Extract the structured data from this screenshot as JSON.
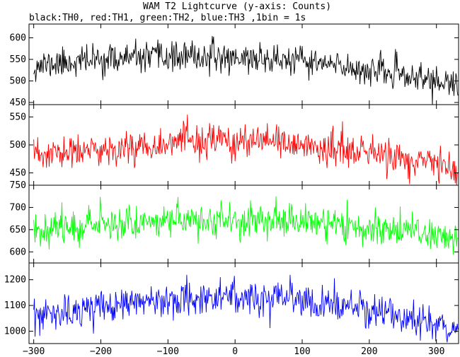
{
  "chart_data": {
    "type": "line",
    "title": "WAM T2 Lightcurve (y-axis: Counts)",
    "subtitle": "black:TH0, red:TH1, green:TH2, blue:TH3 ,1bin = 1s",
    "xlabel": "",
    "xlim": [
      -307,
      333
    ],
    "x_ticks": [
      -300,
      -200,
      -100,
      0,
      100,
      200,
      300
    ],
    "x_tick_labels": [
      "−300",
      "−200",
      "−100",
      "0",
      "100",
      "200",
      "300"
    ],
    "grid": false,
    "panels": [
      {
        "series_name": "TH0",
        "color": "#000000",
        "ylim": [
          445,
          632
        ],
        "y_ticks": [
          450,
          500,
          550,
          600
        ],
        "y_tick_labels": [
          "450",
          "500",
          "550",
          "600"
        ],
        "trend": [
          [
            -300,
            535
          ],
          [
            -200,
            550
          ],
          [
            -100,
            555
          ],
          [
            0,
            555
          ],
          [
            100,
            545
          ],
          [
            200,
            525
          ],
          [
            300,
            500
          ],
          [
            330,
            485
          ]
        ],
        "noise_sd": 17,
        "seed": 11
      },
      {
        "series_name": "TH1",
        "color": "#ff0000",
        "ylim": [
          428,
          572
        ],
        "y_ticks": [
          450,
          500,
          550
        ],
        "y_tick_labels": [
          "450",
          "500",
          "550"
        ],
        "trend": [
          [
            -300,
            480
          ],
          [
            -200,
            490
          ],
          [
            -100,
            505
          ],
          [
            0,
            505
          ],
          [
            100,
            500
          ],
          [
            200,
            485
          ],
          [
            300,
            465
          ],
          [
            330,
            455
          ]
        ],
        "noise_sd": 15,
        "seed": 23
      },
      {
        "series_name": "TH2",
        "color": "#00ff00",
        "ylim": [
          575,
          750
        ],
        "y_ticks": [
          600,
          650,
          700,
          750
        ],
        "y_tick_labels": [
          "600",
          "650",
          "700",
          "750"
        ],
        "trend": [
          [
            -300,
            650
          ],
          [
            -200,
            665
          ],
          [
            -100,
            670
          ],
          [
            0,
            672
          ],
          [
            100,
            668
          ],
          [
            200,
            655
          ],
          [
            300,
            640
          ],
          [
            330,
            632
          ]
        ],
        "noise_sd": 19,
        "seed": 37
      },
      {
        "series_name": "TH3",
        "color": "#0000ff",
        "ylim": [
          952,
          1265
        ],
        "y_ticks": [
          1000,
          1100,
          1200
        ],
        "y_tick_labels": [
          "1000",
          "1100",
          "1200"
        ],
        "trend": [
          [
            -300,
            1050
          ],
          [
            -200,
            1090
          ],
          [
            -100,
            1130
          ],
          [
            0,
            1135
          ],
          [
            100,
            1115
          ],
          [
            200,
            1080
          ],
          [
            300,
            1030
          ],
          [
            330,
            1010
          ]
        ],
        "noise_sd": 33,
        "seed": 53
      }
    ]
  }
}
